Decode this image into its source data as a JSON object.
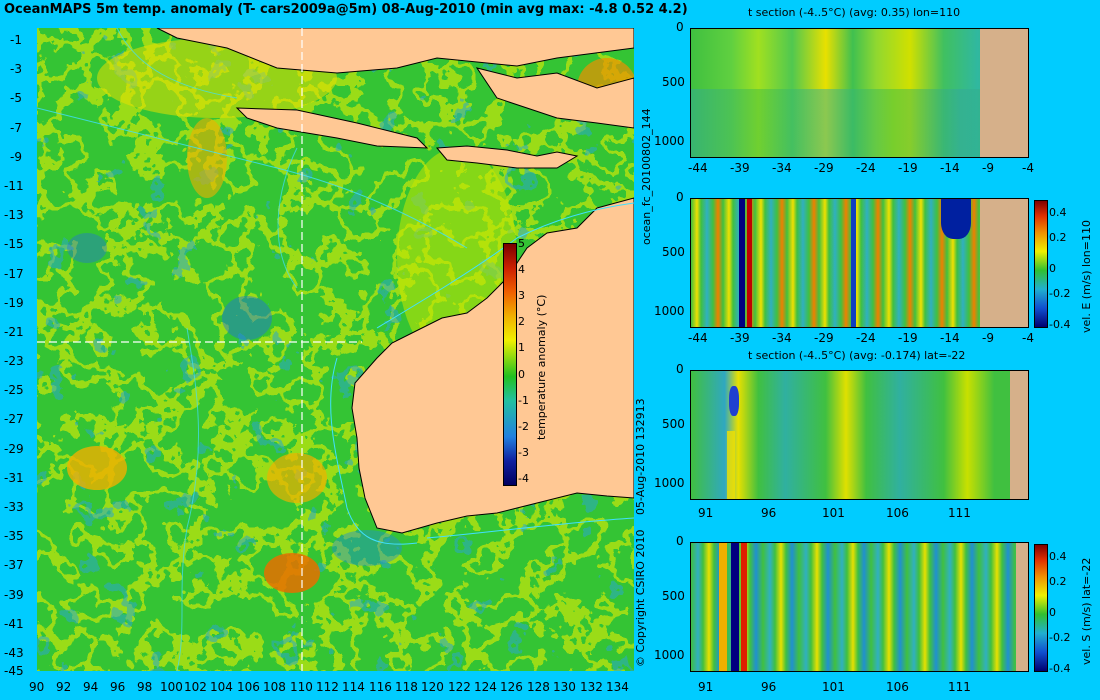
{
  "title": "OceanMAPS 5m temp. anomaly (T- cars2009a@5m) 08-Aug-2010 (min avg max: -4.8 0.52 4.2)",
  "map": {
    "lat_labels": [
      "-1",
      "-3",
      "-5",
      "-7",
      "-9",
      "-11",
      "-13",
      "-15",
      "-17",
      "-19",
      "-21",
      "-23",
      "-25",
      "-27",
      "-29",
      "-31",
      "-33",
      "-35",
      "-37",
      "-39",
      "-41",
      "-43",
      "-45"
    ],
    "lon_labels": [
      "90",
      "92",
      "94",
      "96",
      "98",
      "100",
      "102",
      "104",
      "106",
      "108",
      "110",
      "112",
      "114",
      "116",
      "118",
      "120",
      "122",
      "124",
      "126",
      "128",
      "130",
      "132",
      "134"
    ],
    "colorbar": {
      "label": "temperature anomaly (°C)",
      "ticks": [
        "5",
        "4",
        "3",
        "2",
        "1",
        "0",
        "-1",
        "-2",
        "-3",
        "-4"
      ]
    },
    "section_lon": 110,
    "section_lat": -22
  },
  "side_labels": {
    "forecast_id": "ocean_fc_20100802_144",
    "run_time": "05-Aug-2010 132913",
    "copyright": "© Copyright CSIRO 2010"
  },
  "panels": [
    {
      "title": "t section (-4..5°C) (avg: 0.35) lon=110",
      "depth_ticks": [
        "0",
        "500",
        "1000"
      ],
      "x_ticks": [
        "-44",
        "-39",
        "-34",
        "-29",
        "-24",
        "-19",
        "-14",
        "-9",
        "-4"
      ]
    },
    {
      "title": "",
      "depth_ticks": [
        "0",
        "500",
        "1000"
      ],
      "x_ticks": [
        "-44",
        "-39",
        "-34",
        "-29",
        "-24",
        "-19",
        "-14",
        "-9",
        "-4"
      ],
      "colorbar_label": "vel. E (m/s) lon=110",
      "colorbar_ticks": [
        "0.4",
        "0.2",
        "0",
        "-0.2",
        "-0.4"
      ]
    },
    {
      "title": "t section (-4..5°C) (avg: -0.174) lat=-22",
      "depth_ticks": [
        "0",
        "500",
        "1000"
      ],
      "x_ticks": [
        "91",
        "96",
        "101",
        "106",
        "111"
      ]
    },
    {
      "title": "",
      "depth_ticks": [
        "0",
        "500",
        "1000"
      ],
      "x_ticks": [
        "91",
        "96",
        "101",
        "106",
        "111"
      ],
      "colorbar_label": "vel. S (m/s) lat=-22",
      "colorbar_ticks": [
        "0.4",
        "0.2",
        "0",
        "-0.2",
        "-0.4"
      ]
    }
  ]
}
